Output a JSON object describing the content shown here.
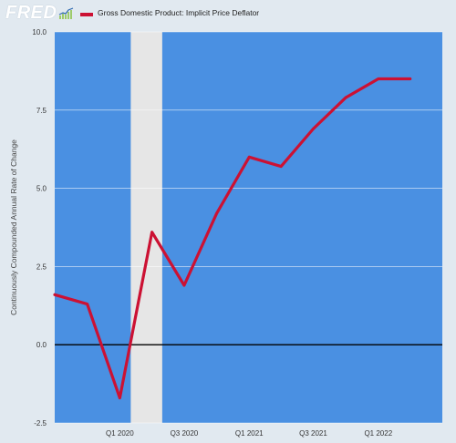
{
  "header": {
    "logo_text": "FRED",
    "logo_icon": "fred-sparkline-icon",
    "series_label": "Gross Domestic Product: Implicit Price Deflator",
    "series_color": "#cc1133"
  },
  "chart_data": {
    "type": "line",
    "ylabel": "Continuously Compounded Annual Rate of Change",
    "xlabel": "",
    "ylim": [
      -2.5,
      10.0
    ],
    "yticks": [
      "10.0",
      "7.5",
      "5.0",
      "2.5",
      "0.0",
      "-2.5"
    ],
    "ytick_values": [
      10.0,
      7.5,
      5.0,
      2.5,
      0.0,
      -2.5
    ],
    "xlim": [
      "2019-07-01",
      "2022-07-01"
    ],
    "xticks": [
      "Q1 2020",
      "Q3 2020",
      "Q1 2021",
      "Q3 2021",
      "Q1 2022"
    ],
    "xtick_dates": [
      "2020-01-01",
      "2020-07-01",
      "2021-01-01",
      "2021-07-01",
      "2022-01-01"
    ],
    "recession_shading": {
      "start": "2020-02-01",
      "end": "2020-04-30"
    },
    "grid": true,
    "plot_background": "#4a90e2",
    "line_color": "#cc1133",
    "series": [
      {
        "x": [
          "2019-07-01",
          "2019-10-01",
          "2020-01-01",
          "2020-04-01",
          "2020-07-01",
          "2020-10-01",
          "2021-01-01",
          "2021-04-01",
          "2021-07-01",
          "2021-10-01",
          "2022-01-01",
          "2022-04-01"
        ],
        "values": [
          1.6,
          1.3,
          -1.7,
          3.6,
          1.9,
          4.2,
          6.0,
          5.7,
          6.9,
          7.9,
          8.5,
          8.5
        ]
      }
    ]
  }
}
